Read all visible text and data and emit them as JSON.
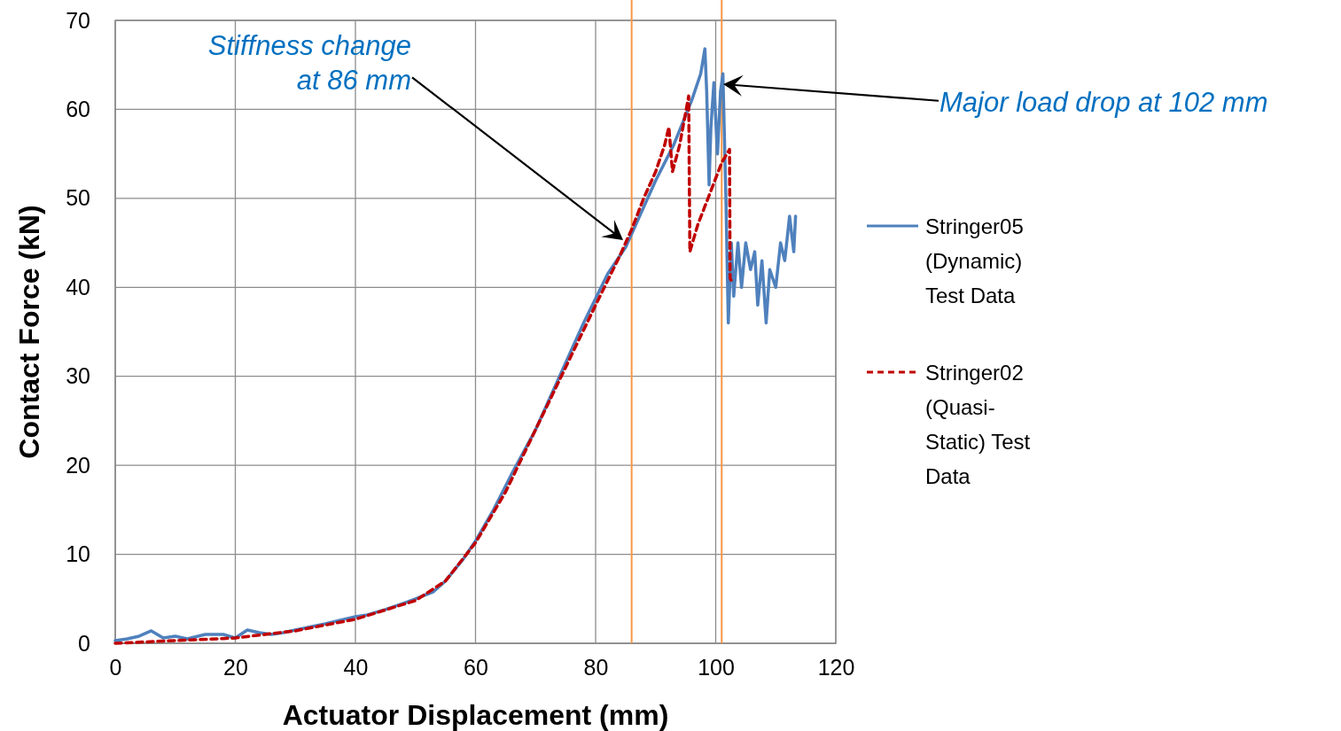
{
  "chart_data": {
    "type": "line",
    "xlabel": "Actuator Displacement (mm)",
    "ylabel": "Contact Force (kN)",
    "xlim": [
      0,
      120
    ],
    "xticks": [
      0,
      20,
      40,
      60,
      80,
      100,
      120
    ],
    "ylim": [
      0,
      70
    ],
    "yticks": [
      0,
      10,
      20,
      30,
      40,
      50,
      60,
      70
    ],
    "grid": true,
    "legend": "right",
    "marker": "none",
    "series": [
      {
        "name": "Stringer05 (Dynamic) Test Data",
        "color": "#4f81bd",
        "line_style": "solid",
        "x": [
          0,
          2,
          4,
          6,
          8,
          10,
          12,
          15,
          18,
          20,
          22,
          24,
          26,
          28,
          30,
          35,
          40,
          42,
          45,
          48,
          50,
          53,
          55,
          58,
          60,
          63,
          66,
          70,
          74,
          78,
          82,
          85,
          88,
          90,
          93,
          96,
          97.5,
          98.2,
          98.5,
          98.9,
          99.2,
          99.7,
          100.3,
          100.8,
          101.2,
          101.7,
          102.1,
          102.6,
          103,
          103.7,
          104.3,
          105,
          105.8,
          106.5,
          107,
          107.7,
          108.4,
          109,
          110,
          110.8,
          111.5,
          112.3,
          113,
          113.3
        ],
        "values": [
          0.3,
          0.5,
          0.8,
          1.4,
          0.6,
          0.8,
          0.5,
          1.0,
          1.0,
          0.6,
          1.5,
          1.2,
          1.0,
          1.2,
          1.5,
          2.2,
          3.0,
          3.2,
          3.8,
          4.5,
          5.0,
          5.8,
          7.0,
          9.5,
          11.5,
          15,
          19,
          24,
          30,
          36,
          41.5,
          44.5,
          49,
          52,
          56,
          61,
          64,
          66.8,
          62,
          51.5,
          58,
          63,
          55,
          62,
          64,
          50,
          36,
          45,
          39,
          45,
          40,
          45,
          42,
          44,
          38,
          43,
          36,
          42,
          40,
          45,
          43,
          48,
          44,
          48
        ]
      },
      {
        "name": "Stringer02 (Quasi-Static) Test Data",
        "color": "#c00000",
        "line_style": "dashed",
        "x": [
          0,
          10,
          20,
          30,
          40,
          50,
          55,
          60,
          65,
          70,
          75,
          80,
          84,
          86,
          88,
          90,
          91.5,
          92.2,
          92.8,
          94,
          95.5,
          95.7,
          97,
          99,
          101,
          102.3,
          102.4,
          102.8
        ],
        "values": [
          0,
          0.3,
          0.6,
          1.4,
          2.7,
          4.8,
          7,
          11.3,
          17,
          24,
          31,
          38,
          43.5,
          46.5,
          50,
          53,
          56,
          58,
          53,
          56,
          61.5,
          44,
          47,
          50.5,
          54,
          55.5,
          41,
          40.5
        ]
      }
    ],
    "ref_lines": [
      {
        "axis": "x",
        "value": 86,
        "color": "#f79646"
      },
      {
        "axis": "x",
        "value": 101,
        "color": "#f79646"
      }
    ],
    "annotations": [
      "Stiffness change at 86 mm",
      "Major load drop at 102 mm"
    ]
  }
}
